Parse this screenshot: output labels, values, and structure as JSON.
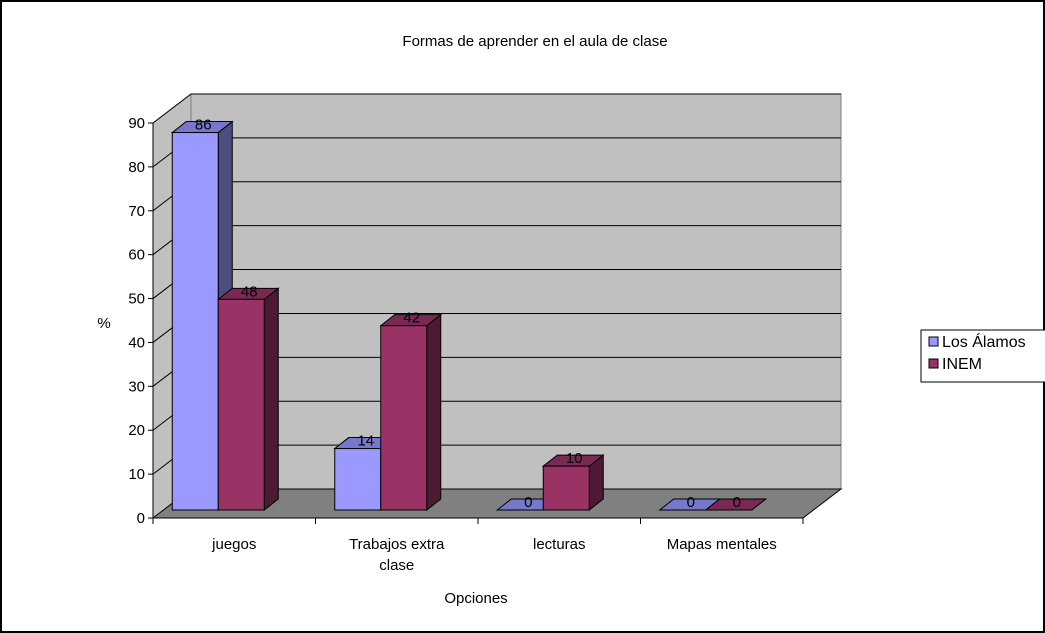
{
  "chart_data": {
    "type": "bar",
    "title": "Formas de aprender en el aula de clase",
    "xlabel": "Opciones",
    "ylabel": "%",
    "categories": [
      "juegos",
      "Trabajos extra clase",
      "lecturas",
      "Mapas mentales"
    ],
    "category_lines": [
      [
        "juegos"
      ],
      [
        "Trabajos extra",
        "clase"
      ],
      [
        "lecturas"
      ],
      [
        "Mapas mentales"
      ]
    ],
    "series": [
      {
        "name": "Los Álamos",
        "values": [
          86,
          14,
          0,
          0
        ],
        "color": "#9999ff",
        "side_color": "#4d4d80",
        "top_color": "#7777cc"
      },
      {
        "name": "INEM",
        "values": [
          48,
          42,
          10,
          0
        ],
        "color": "#993366",
        "side_color": "#4d1a33",
        "top_color": "#7a2952"
      }
    ],
    "ylim": [
      0,
      90
    ],
    "yticks": [
      0,
      10,
      20,
      30,
      40,
      50,
      60,
      70,
      80,
      90
    ],
    "grid": true,
    "legend_position": "right",
    "wall_color": "#c0c0c0",
    "floor_color": "#808080"
  }
}
